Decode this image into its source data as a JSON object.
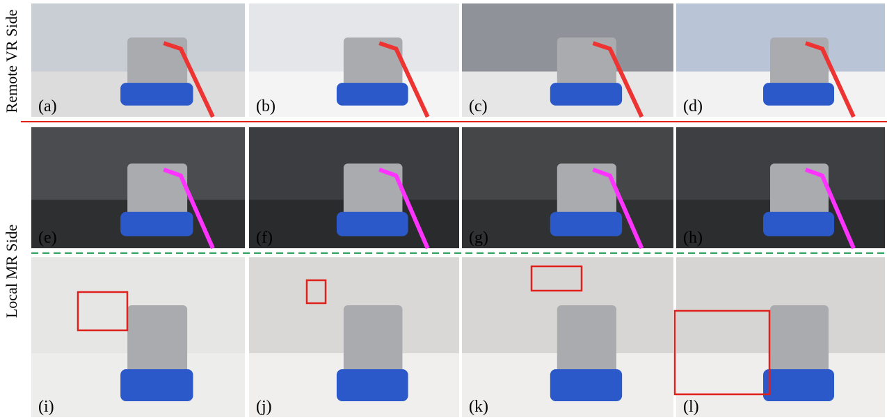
{
  "side_labels": [
    "Remote VR Side",
    "Local MR Side"
  ],
  "panels": [
    {
      "label": "(a)"
    },
    {
      "label": "(b)"
    },
    {
      "label": "(c)"
    },
    {
      "label": "(d)"
    },
    {
      "label": "(e)"
    },
    {
      "label": "(f)"
    },
    {
      "label": "(g)"
    },
    {
      "label": "(h)"
    },
    {
      "label": "(i)"
    },
    {
      "label": "(j)"
    },
    {
      "label": "(k)"
    },
    {
      "label": "(l)"
    }
  ]
}
